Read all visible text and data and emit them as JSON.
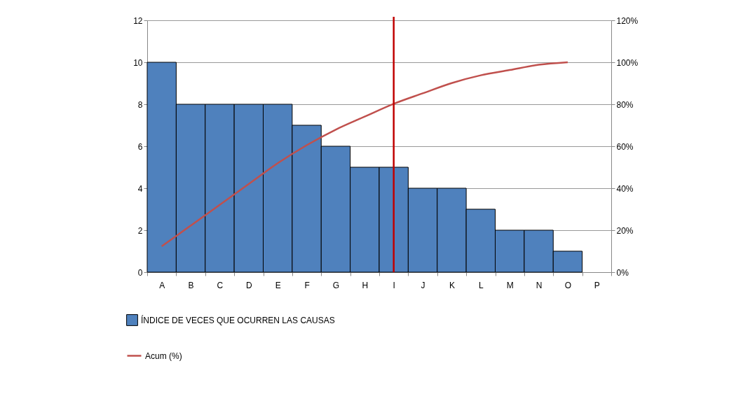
{
  "chart_data": {
    "type": "bar",
    "categories": [
      "A",
      "B",
      "C",
      "D",
      "E",
      "F",
      "G",
      "H",
      "I",
      "J",
      "K",
      "L",
      "M",
      "N",
      "O",
      "P"
    ],
    "series": [
      {
        "name": "ÍNDICE DE VECES QUE OCURREN LAS CAUSAS",
        "color": "#4f81bd",
        "values": [
          10,
          8,
          8,
          8,
          8,
          7,
          6,
          5,
          5,
          4,
          4,
          3,
          2,
          2,
          1,
          null
        ]
      },
      {
        "name": "Acum (%)",
        "type": "line",
        "axis": "y2",
        "color": "#c0504d",
        "values": [
          12.3,
          22.2,
          32.1,
          42.0,
          51.9,
          60.5,
          67.9,
          74.1,
          80.2,
          85.2,
          90.1,
          93.8,
          96.3,
          98.8,
          100,
          null
        ]
      }
    ],
    "ylim": [
      0,
      12
    ],
    "yticks": [
      0,
      2,
      4,
      6,
      8,
      10,
      12
    ],
    "y2lim": [
      0,
      120
    ],
    "y2ticks": [
      {
        "value": 0,
        "label": "0%"
      },
      {
        "value": 20,
        "label": "20%"
      },
      {
        "value": 40,
        "label": "40%"
      },
      {
        "value": 60,
        "label": "60%"
      },
      {
        "value": 80,
        "label": "80%"
      },
      {
        "value": 100,
        "label": "100%"
      },
      {
        "value": 120,
        "label": "120%"
      }
    ],
    "ref_lines": [
      {
        "axis": "x",
        "value": "I",
        "color": "#c00000"
      }
    ],
    "grid": "y",
    "legend": "bottom left"
  }
}
